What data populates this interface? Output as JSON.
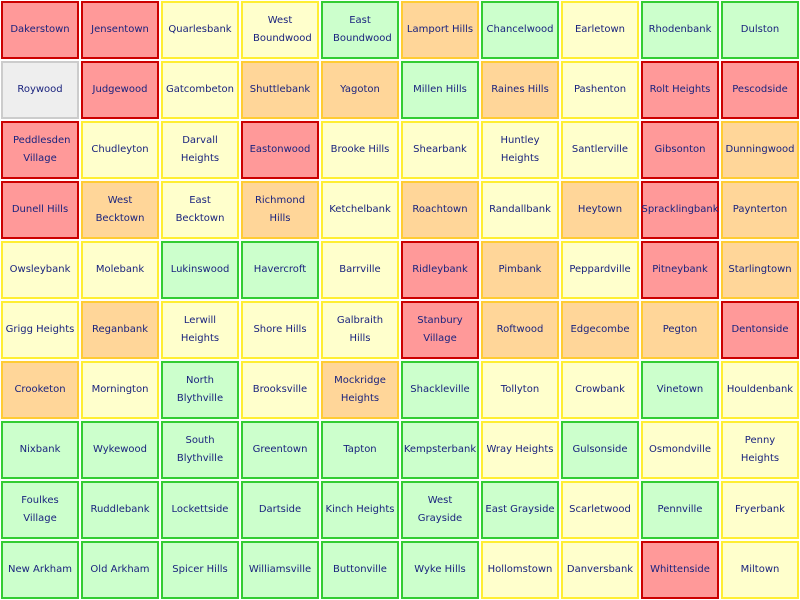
{
  "status_colors": {
    "red": {
      "fill": "#ff9999",
      "border": "#cc0000"
    },
    "orange": {
      "fill": "#ffd699",
      "border": "#ffcc33"
    },
    "yellow": {
      "fill": "#ffffcc",
      "border": "#ffee33"
    },
    "green": {
      "fill": "#ccffcc",
      "border": "#33cc33"
    },
    "grey": {
      "fill": "#eeeeee",
      "border": "#cccccc"
    }
  },
  "rows": [
    [
      {
        "label": "Dakerstown",
        "status": "red"
      },
      {
        "label": "Jensentown",
        "status": "red"
      },
      {
        "label": "Quarlesbank",
        "status": "yellow"
      },
      {
        "label": "West Boundwood",
        "status": "yellow"
      },
      {
        "label": "East Boundwood",
        "status": "green"
      },
      {
        "label": "Lamport Hills",
        "status": "orange"
      },
      {
        "label": "Chancelwood",
        "status": "green"
      },
      {
        "label": "Earletown",
        "status": "yellow"
      },
      {
        "label": "Rhodenbank",
        "status": "green"
      },
      {
        "label": "Dulston",
        "status": "green"
      }
    ],
    [
      {
        "label": "Roywood",
        "status": "grey"
      },
      {
        "label": "Judgewood",
        "status": "red"
      },
      {
        "label": "Gatcombeton",
        "status": "yellow"
      },
      {
        "label": "Shuttlebank",
        "status": "orange"
      },
      {
        "label": "Yagoton",
        "status": "orange"
      },
      {
        "label": "Millen Hills",
        "status": "green"
      },
      {
        "label": "Raines Hills",
        "status": "orange"
      },
      {
        "label": "Pashenton",
        "status": "yellow"
      },
      {
        "label": "Rolt Heights",
        "status": "red"
      },
      {
        "label": "Pescodside",
        "status": "red"
      }
    ],
    [
      {
        "label": "Peddlesden Village",
        "status": "red"
      },
      {
        "label": "Chudleyton",
        "status": "yellow"
      },
      {
        "label": "Darvall Heights",
        "status": "yellow"
      },
      {
        "label": "Eastonwood",
        "status": "red"
      },
      {
        "label": "Brooke Hills",
        "status": "yellow"
      },
      {
        "label": "Shearbank",
        "status": "yellow"
      },
      {
        "label": "Huntley Heights",
        "status": "yellow"
      },
      {
        "label": "Santlerville",
        "status": "yellow"
      },
      {
        "label": "Gibsonton",
        "status": "red"
      },
      {
        "label": "Dunningwood",
        "status": "orange"
      }
    ],
    [
      {
        "label": "Dunell Hills",
        "status": "red"
      },
      {
        "label": "West Becktown",
        "status": "orange"
      },
      {
        "label": "East Becktown",
        "status": "yellow"
      },
      {
        "label": "Richmond Hills",
        "status": "orange"
      },
      {
        "label": "Ketchelbank",
        "status": "yellow"
      },
      {
        "label": "Roachtown",
        "status": "orange"
      },
      {
        "label": "Randallbank",
        "status": "yellow"
      },
      {
        "label": "Heytown",
        "status": "orange"
      },
      {
        "label": "Spracklingbank",
        "status": "red"
      },
      {
        "label": "Paynterton",
        "status": "orange"
      }
    ],
    [
      {
        "label": "Owsleybank",
        "status": "yellow"
      },
      {
        "label": "Molebank",
        "status": "yellow"
      },
      {
        "label": "Lukinswood",
        "status": "green"
      },
      {
        "label": "Havercroft",
        "status": "green"
      },
      {
        "label": "Barrville",
        "status": "yellow"
      },
      {
        "label": "Ridleybank",
        "status": "red"
      },
      {
        "label": "Pimbank",
        "status": "orange"
      },
      {
        "label": "Peppardville",
        "status": "yellow"
      },
      {
        "label": "Pitneybank",
        "status": "red"
      },
      {
        "label": "Starlingtown",
        "status": "orange"
      }
    ],
    [
      {
        "label": "Grigg Heights",
        "status": "yellow"
      },
      {
        "label": "Reganbank",
        "status": "orange"
      },
      {
        "label": "Lerwill Heights",
        "status": "yellow"
      },
      {
        "label": "Shore Hills",
        "status": "yellow"
      },
      {
        "label": "Galbraith Hills",
        "status": "yellow"
      },
      {
        "label": "Stanbury Village",
        "status": "red"
      },
      {
        "label": "Roftwood",
        "status": "orange"
      },
      {
        "label": "Edgecombe",
        "status": "orange"
      },
      {
        "label": "Pegton",
        "status": "orange"
      },
      {
        "label": "Dentonside",
        "status": "red"
      }
    ],
    [
      {
        "label": "Crooketon",
        "status": "orange"
      },
      {
        "label": "Mornington",
        "status": "yellow"
      },
      {
        "label": "North Blythville",
        "status": "green"
      },
      {
        "label": "Brooksville",
        "status": "yellow"
      },
      {
        "label": "Mockridge Heights",
        "status": "orange"
      },
      {
        "label": "Shackleville",
        "status": "green"
      },
      {
        "label": "Tollyton",
        "status": "yellow"
      },
      {
        "label": "Crowbank",
        "status": "yellow"
      },
      {
        "label": "Vinetown",
        "status": "green"
      },
      {
        "label": "Houldenbank",
        "status": "yellow"
      }
    ],
    [
      {
        "label": "Nixbank",
        "status": "green"
      },
      {
        "label": "Wykewood",
        "status": "green"
      },
      {
        "label": "South Blythville",
        "status": "green"
      },
      {
        "label": "Greentown",
        "status": "green"
      },
      {
        "label": "Tapton",
        "status": "green"
      },
      {
        "label": "Kempsterbank",
        "status": "green"
      },
      {
        "label": "Wray Heights",
        "status": "yellow"
      },
      {
        "label": "Gulsonside",
        "status": "green"
      },
      {
        "label": "Osmondville",
        "status": "yellow"
      },
      {
        "label": "Penny Heights",
        "status": "yellow"
      }
    ],
    [
      {
        "label": "Foulkes Village",
        "status": "green"
      },
      {
        "label": "Ruddlebank",
        "status": "green"
      },
      {
        "label": "Lockettside",
        "status": "green"
      },
      {
        "label": "Dartside",
        "status": "green"
      },
      {
        "label": "Kinch Heights",
        "status": "green"
      },
      {
        "label": "West Grayside",
        "status": "green"
      },
      {
        "label": "East Grayside",
        "status": "green"
      },
      {
        "label": "Scarletwood",
        "status": "yellow"
      },
      {
        "label": "Pennville",
        "status": "green"
      },
      {
        "label": "Fryerbank",
        "status": "yellow"
      }
    ],
    [
      {
        "label": "New Arkham",
        "status": "green"
      },
      {
        "label": "Old Arkham",
        "status": "green"
      },
      {
        "label": "Spicer Hills",
        "status": "green"
      },
      {
        "label": "Williamsville",
        "status": "green"
      },
      {
        "label": "Buttonville",
        "status": "green"
      },
      {
        "label": "Wyke Hills",
        "status": "green"
      },
      {
        "label": "Hollomstown",
        "status": "yellow"
      },
      {
        "label": "Danversbank",
        "status": "yellow"
      },
      {
        "label": "Whittenside",
        "status": "red"
      },
      {
        "label": "Miltown",
        "status": "yellow"
      }
    ]
  ]
}
